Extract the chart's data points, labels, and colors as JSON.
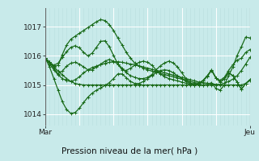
{
  "title": "Pression niveau de la mer( hPa )",
  "xlabel_left": "Mar",
  "xlabel_right": "Jeu",
  "ylim": [
    1013.6,
    1017.65
  ],
  "yticks": [
    1014,
    1015,
    1016,
    1017
  ],
  "bg_color": "#c8eaea",
  "grid_color_major": "#ffffff",
  "grid_color_minor": "#b8dede",
  "line_color": "#1a6b1a",
  "n": 49,
  "lines": [
    [
      1015.92,
      1015.78,
      1015.62,
      1015.48,
      1015.35,
      1015.22,
      1015.12,
      1015.05,
      1015.02,
      1015.0,
      1015.0,
      1015.0,
      1015.0,
      1015.0,
      1015.0,
      1015.0,
      1015.0,
      1015.0,
      1015.0,
      1015.0,
      1015.0,
      1015.0,
      1015.0,
      1015.0,
      1015.0,
      1015.0,
      1015.0,
      1015.0,
      1015.0,
      1015.0,
      1015.0,
      1015.0,
      1015.0,
      1015.0,
      1015.0,
      1015.0,
      1015.0,
      1015.0,
      1015.0,
      1015.0,
      1015.0,
      1015.0,
      1015.0,
      1015.0,
      1015.0,
      1015.0,
      1015.0,
      1015.05,
      1015.15
    ],
    [
      1015.92,
      1015.72,
      1015.52,
      1015.35,
      1015.22,
      1015.15,
      1015.12,
      1015.18,
      1015.28,
      1015.42,
      1015.52,
      1015.6,
      1015.65,
      1015.7,
      1015.74,
      1015.78,
      1015.8,
      1015.8,
      1015.78,
      1015.75,
      1015.72,
      1015.7,
      1015.66,
      1015.62,
      1015.58,
      1015.54,
      1015.5,
      1015.46,
      1015.42,
      1015.38,
      1015.34,
      1015.3,
      1015.26,
      1015.22,
      1015.18,
      1015.14,
      1015.1,
      1015.08,
      1015.06,
      1015.04,
      1015.02,
      1015.02,
      1015.06,
      1015.12,
      1015.2,
      1015.32,
      1015.5,
      1015.72,
      1015.95
    ],
    [
      1015.92,
      1015.62,
      1015.22,
      1014.82,
      1014.42,
      1014.15,
      1014.02,
      1014.05,
      1014.2,
      1014.4,
      1014.58,
      1014.72,
      1014.82,
      1014.9,
      1014.98,
      1015.08,
      1015.22,
      1015.38,
      1015.38,
      1015.25,
      1015.12,
      1015.05,
      1015.05,
      1015.12,
      1015.22,
      1015.32,
      1015.42,
      1015.5,
      1015.52,
      1015.5,
      1015.42,
      1015.32,
      1015.22,
      1015.12,
      1015.05,
      1015.0,
      1015.0,
      1015.0,
      1015.02,
      1015.08,
      1014.88,
      1014.82,
      1015.0,
      1015.32,
      1015.62,
      1016.02,
      1016.32,
      1016.65,
      1016.62
    ],
    [
      1015.92,
      1015.78,
      1015.68,
      1015.75,
      1015.95,
      1016.15,
      1016.3,
      1016.35,
      1016.28,
      1016.12,
      1016.0,
      1016.1,
      1016.3,
      1016.5,
      1016.52,
      1016.32,
      1016.02,
      1015.72,
      1015.52,
      1015.5,
      1015.58,
      1015.68,
      1015.78,
      1015.82,
      1015.78,
      1015.68,
      1015.52,
      1015.38,
      1015.28,
      1015.22,
      1015.18,
      1015.14,
      1015.1,
      1015.06,
      1015.02,
      1015.0,
      1015.04,
      1015.14,
      1015.3,
      1015.5,
      1015.25,
      1015.1,
      1015.2,
      1015.42,
      1015.32,
      1015.1,
      1014.85,
      1015.05,
      1015.18
    ],
    [
      1015.92,
      1015.78,
      1015.62,
      1015.68,
      1016.05,
      1016.38,
      1016.58,
      1016.68,
      1016.78,
      1016.88,
      1016.98,
      1017.08,
      1017.18,
      1017.25,
      1017.22,
      1017.08,
      1016.88,
      1016.62,
      1016.38,
      1016.12,
      1015.92,
      1015.75,
      1015.65,
      1015.58,
      1015.52,
      1015.48,
      1015.44,
      1015.4,
      1015.36,
      1015.32,
      1015.28,
      1015.24,
      1015.2,
      1015.16,
      1015.12,
      1015.08,
      1015.06,
      1015.15,
      1015.3,
      1015.52,
      1015.25,
      1015.1,
      1015.22,
      1015.42,
      1015.32,
      1015.1,
      1014.85,
      1015.05,
      1015.18
    ],
    [
      1015.92,
      1015.78,
      1015.58,
      1015.38,
      1015.48,
      1015.65,
      1015.75,
      1015.78,
      1015.72,
      1015.62,
      1015.52,
      1015.52,
      1015.62,
      1015.72,
      1015.82,
      1015.88,
      1015.82,
      1015.72,
      1015.58,
      1015.42,
      1015.32,
      1015.26,
      1015.22,
      1015.22,
      1015.26,
      1015.36,
      1015.52,
      1015.66,
      1015.76,
      1015.82,
      1015.76,
      1015.62,
      1015.42,
      1015.22,
      1015.07,
      1015.02,
      1015.06,
      1015.16,
      1015.32,
      1015.52,
      1015.24,
      1015.16,
      1015.26,
      1015.5,
      1015.7,
      1015.86,
      1015.92,
      1016.12,
      1016.22
    ]
  ]
}
